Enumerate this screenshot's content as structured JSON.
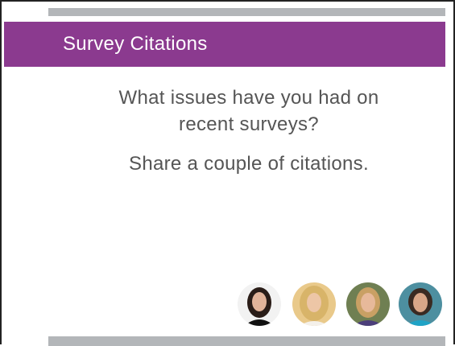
{
  "slide": {
    "title": "Survey Citations",
    "question_lines": [
      "What issues have you had on",
      "recent surveys?"
    ],
    "prompt": "Share a couple of citations."
  }
}
